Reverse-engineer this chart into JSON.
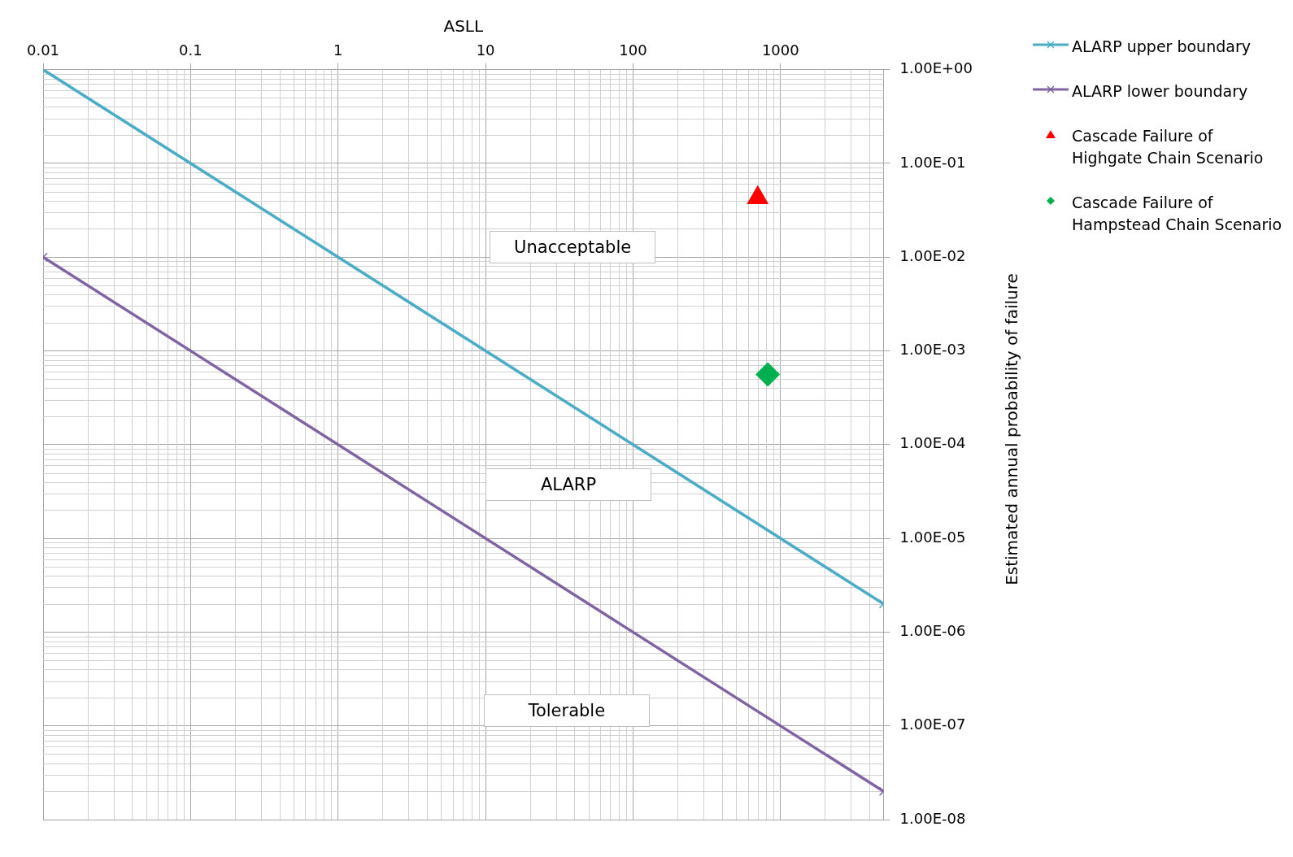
{
  "chart_data": {
    "type": "line",
    "xlabel": "ASLL",
    "ylabel": "Estimated annual probability of failure",
    "log": "xy",
    "grid": true,
    "legend": "top right",
    "line_style": "solid",
    "xlim": [
      0.01,
      5000
    ],
    "xticks": [
      0.01,
      0.1,
      1,
      10,
      100,
      1000
    ],
    "ylim": [
      1e-08,
      1
    ],
    "yticks": [
      {
        "value": 1e-08,
        "label": "1.00E-08"
      },
      {
        "value": 1e-07,
        "label": "1.00E-07"
      },
      {
        "value": 1e-06,
        "label": "1.00E-06"
      },
      {
        "value": 1e-05,
        "label": "1.00E-05"
      },
      {
        "value": 0.0001,
        "label": "1.00E-04"
      },
      {
        "value": 0.001,
        "label": "1.00E-03"
      },
      {
        "value": 0.01,
        "label": "1.00E-02"
      },
      {
        "value": 0.1,
        "label": "1.00E-01"
      },
      {
        "value": 1,
        "label": "1.00E+00"
      }
    ],
    "series": [
      {
        "name": "ALARP upper boundary",
        "marker": "cross",
        "color": "#4bacc6",
        "x": [
          0.01,
          5000
        ],
        "values": [
          1,
          2e-06
        ]
      },
      {
        "name": "ALARP lower boundary",
        "marker": "cross",
        "color": "#8064a2",
        "x": [
          0.01,
          5000
        ],
        "values": [
          0.01,
          2e-08
        ]
      },
      {
        "name": "Cascade Failure of Highgate Chain Scenario",
        "type": "scatter",
        "marker": "triangle",
        "color": "#ff0000",
        "x": [
          700
        ],
        "values": [
          0.043
        ]
      },
      {
        "name": "Cascade Failure of Hampstead Chain Scenario",
        "type": "scatter",
        "marker": "diamond",
        "color": "#00b050",
        "x": [
          820
        ],
        "values": [
          0.00056
        ]
      }
    ],
    "annotations": [
      "Unacceptable",
      "ALARP",
      "Tolerable"
    ]
  }
}
